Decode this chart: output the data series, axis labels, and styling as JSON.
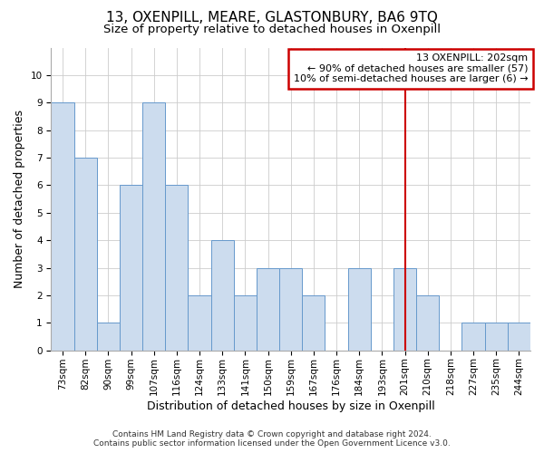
{
  "title": "13, OXENPILL, MEARE, GLASTONBURY, BA6 9TQ",
  "subtitle": "Size of property relative to detached houses in Oxenpill",
  "xlabel": "Distribution of detached houses by size in Oxenpill",
  "ylabel": "Number of detached properties",
  "categories": [
    "73sqm",
    "82sqm",
    "90sqm",
    "99sqm",
    "107sqm",
    "116sqm",
    "124sqm",
    "133sqm",
    "141sqm",
    "150sqm",
    "159sqm",
    "167sqm",
    "176sqm",
    "184sqm",
    "193sqm",
    "201sqm",
    "210sqm",
    "218sqm",
    "227sqm",
    "235sqm",
    "244sqm"
  ],
  "values": [
    9,
    7,
    1,
    6,
    9,
    6,
    2,
    4,
    2,
    3,
    3,
    2,
    0,
    3,
    0,
    3,
    2,
    0,
    1,
    1,
    1
  ],
  "bar_color": "#ccdcee",
  "bar_edge_color": "#6699cc",
  "vline_x_index": 15,
  "vline_color": "#cc0000",
  "annotation_box_edge_color": "#cc0000",
  "annotation_text_line1": "13 OXENPILL: 202sqm",
  "annotation_text_line2": "← 90% of detached houses are smaller (57)",
  "annotation_text_line3": "10% of semi-detached houses are larger (6) →",
  "ylim": [
    0,
    11
  ],
  "yticks": [
    0,
    1,
    2,
    3,
    4,
    5,
    6,
    7,
    8,
    9,
    10,
    11
  ],
  "footnote_line1": "Contains HM Land Registry data © Crown copyright and database right 2024.",
  "footnote_line2": "Contains public sector information licensed under the Open Government Licence v3.0.",
  "background_color": "#ffffff",
  "grid_color": "#cccccc",
  "title_fontsize": 11,
  "subtitle_fontsize": 9.5,
  "ylabel_fontsize": 9,
  "xlabel_fontsize": 9,
  "tick_fontsize": 7.5,
  "annotation_fontsize": 8,
  "footnote_fontsize": 6.5
}
